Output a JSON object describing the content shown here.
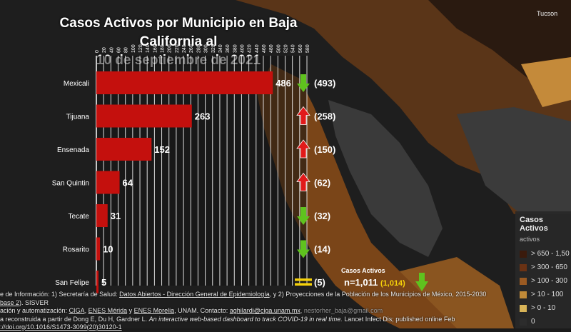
{
  "title_line1": "Casos Activos por Municipio en Baja California al",
  "title_line2": "10 de septiembre de 2021",
  "chart_data": {
    "type": "bar",
    "orientation": "horizontal",
    "title": "Casos Activos por Municipio en Baja California al 10 de septiembre de 2021",
    "categories": [
      "Mexicali",
      "Tijuana",
      "Ensenada",
      "San Quintin",
      "Tecate",
      "Rosarito",
      "San Felipe"
    ],
    "values": [
      486,
      263,
      152,
      64,
      31,
      10,
      5
    ],
    "previous_values": [
      493,
      258,
      150,
      62,
      32,
      14,
      5
    ],
    "previous_labels": [
      "(493)",
      "(258)",
      "(150)",
      "(62)",
      "(32)",
      "(14)",
      "(5)"
    ],
    "trend": [
      "down",
      "up",
      "up",
      "up",
      "down",
      "down",
      "equal"
    ],
    "xlim": [
      0,
      580
    ],
    "x_ticks": [
      0,
      20,
      40,
      60,
      80,
      100,
      120,
      140,
      160,
      180,
      200,
      220,
      240,
      260,
      280,
      300,
      320,
      340,
      360,
      380,
      400,
      420,
      440,
      460,
      480,
      500,
      520,
      540,
      560,
      580
    ],
    "x_tick_labels": [
      "0",
      "20",
      "40",
      "60",
      "80",
      "100",
      "120",
      "140",
      "160",
      "180",
      "200",
      "220",
      "240",
      "260",
      "280",
      "300",
      "320",
      "340",
      "360",
      "380",
      "400",
      "420",
      "440",
      "460",
      "480",
      "500",
      "520",
      "540",
      "560",
      "580"
    ],
    "grid": true,
    "bar_color": "#c4100d",
    "up_color": "#e11a1a",
    "down_color": "#5fc21e",
    "equal_color": "#f5d10a"
  },
  "summary": {
    "label": "Casos Activos",
    "total": "n=1,011",
    "previous": "(1,014)",
    "trend": "down"
  },
  "legend": {
    "title": "Casos Activos",
    "subtitle": "activos",
    "items": [
      {
        "label": "> 650 - 1,50",
        "color": "#3a1a0c"
      },
      {
        "label": "> 300 - 650",
        "color": "#6a3214"
      },
      {
        "label": "> 100 - 300",
        "color": "#9a5a22"
      },
      {
        "label": "> 10 - 100",
        "color": "#c08a38"
      },
      {
        "label": "> 0 - 10",
        "color": "#d8b458"
      },
      {
        "label": "0",
        "color": "#2c2c2c"
      }
    ]
  },
  "footer": {
    "line1a": "e de Información: 1) Secretaría de Salud: ",
    "line1b": "Datos Abiertos - Dirección General de Epidemiología",
    "line1c": ", y 2) Proyecciones de la Población de los Municipios de México, 2015-2030",
    "line2a": "base 2",
    "line2b": "). SISVER",
    "line3a": "ación y automatización: ",
    "line3b": "CIGA",
    "line3c": ", ",
    "line3d": "ENES Mérida",
    "line3e": " y ",
    "line3f": "ENES Morelia",
    "line3g": ", UNAM. Contacto: ",
    "line3h": "aghilardi@ciga.unam.mx",
    "line3i": ", nestorher_baja@gmail.com",
    "line4a": "a reconstruida a partir de Dong E, Du H, Gardner L. ",
    "line4b": "An interactive web-based dashboard to track COVID-19 in real time.",
    "line4c": " Lancet Infect Dis; published online Feb",
    "line5": "://doi.org/10.1016/S1473-3099(20)30120-1"
  },
  "map_labels": {
    "corner": "Tucson"
  }
}
